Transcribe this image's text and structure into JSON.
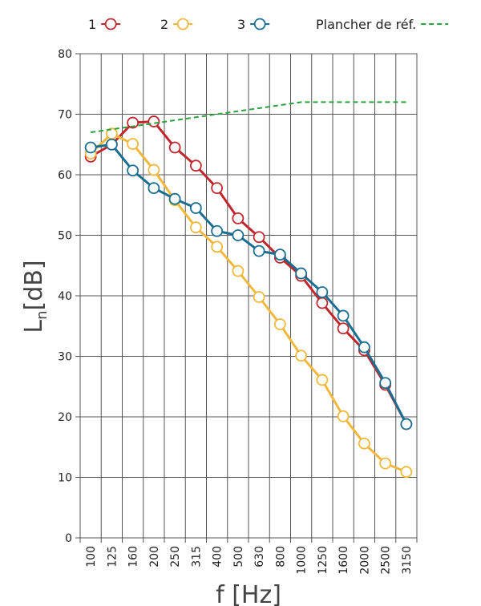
{
  "chart_data": {
    "type": "line",
    "xlabel": "f [Hz]",
    "ylabel_main": "L",
    "ylabel_sub": "n",
    "ylabel_unit": "[dB]",
    "ylim": [
      0,
      80
    ],
    "yticks": [
      0,
      10,
      20,
      30,
      40,
      50,
      60,
      70,
      80
    ],
    "grid": true,
    "legend_position": "top",
    "categories": [
      "100",
      "125",
      "160",
      "200",
      "250",
      "315",
      "400",
      "500",
      "630",
      "800",
      "1000",
      "1250",
      "1600",
      "2000",
      "2500",
      "3150"
    ],
    "series": [
      {
        "name": "1",
        "color": "#c0272d",
        "marker": "open-circle",
        "values": [
          63,
          65,
          68.6,
          68.8,
          64.5,
          61.5,
          57.8,
          52.8,
          49.7,
          46.3,
          43.3,
          38.8,
          34.6,
          31.0,
          25.3,
          18.8
        ]
      },
      {
        "name": "2",
        "color": "#f0b83c",
        "marker": "open-circle",
        "values": [
          63.5,
          66.8,
          65.1,
          60.8,
          55.8,
          51.3,
          48.1,
          44.1,
          39.8,
          35.3,
          30.1,
          26.1,
          20.1,
          15.6,
          12.3,
          10.9
        ]
      },
      {
        "name": "3",
        "color": "#1a6e91",
        "marker": "open-circle",
        "values": [
          64.5,
          65.0,
          60.7,
          57.8,
          56.0,
          54.5,
          50.7,
          50.0,
          47.4,
          46.8,
          43.7,
          40.6,
          36.7,
          31.5,
          25.6,
          18.8
        ]
      },
      {
        "name": "Plancher de réf.",
        "color": "#2aa13a",
        "marker": "none",
        "style": "dashed",
        "values": [
          67,
          67.5,
          68,
          68.5,
          69,
          69.5,
          70,
          70.5,
          71,
          71.5,
          72,
          72,
          72,
          72,
          72,
          72
        ]
      }
    ]
  }
}
